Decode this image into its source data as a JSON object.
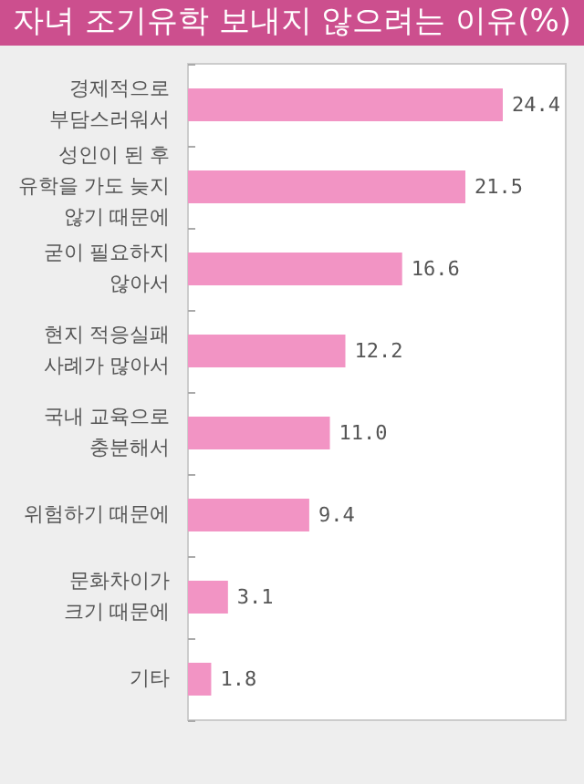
{
  "chart_data": {
    "type": "bar",
    "orientation": "horizontal",
    "title": "자녀 조기유학 보내지 않으려는 이유(%)",
    "categories": [
      "경제적으로\n부담스러워서",
      "성인이 된 후\n유학을 가도 늦지\n않기 때문에",
      "굳이 필요하지\n않아서",
      "현지 적응실패\n사례가 많아서",
      "국내 교육으로\n충분해서",
      "위험하기 때문에",
      "문화차이가\n크기 때문에",
      "기타"
    ],
    "values": [
      24.4,
      21.5,
      16.6,
      12.2,
      11.0,
      9.4,
      3.1,
      1.8
    ],
    "value_labels": [
      "24.4",
      "21.5",
      "16.6",
      "12.2",
      "11.0",
      "9.4",
      "3.1",
      "1.8"
    ],
    "color": "#f294c4"
  }
}
